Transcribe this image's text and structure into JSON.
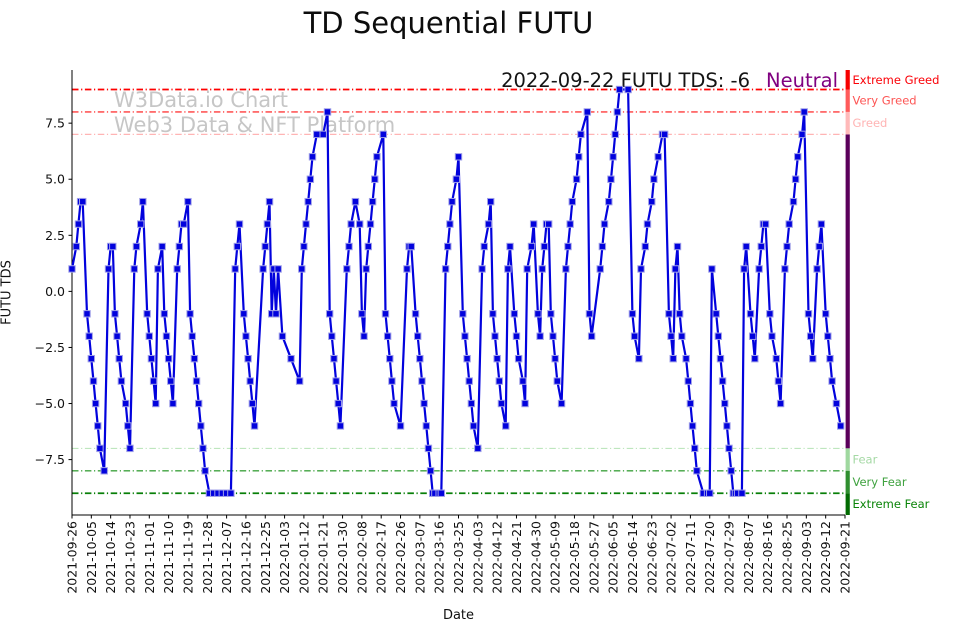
{
  "title": "TD Sequential FUTU",
  "watermark": {
    "line1": "W3Data.io Chart",
    "line2": "Web3 Data & NFT Platform",
    "color": "#c6c6c6"
  },
  "annotation": {
    "text": "2022-09-22 FUTU TDS: -6",
    "status": "Neutral",
    "status_color": "#800080"
  },
  "axes": {
    "xlabel": "Date",
    "ylabel": "FUTU TDS",
    "ytick_values": [
      7.5,
      5.0,
      2.5,
      0.0,
      -2.5,
      -5.0,
      -7.5
    ],
    "ytick_labels": [
      "7.5",
      "5.0",
      "2.5",
      "0.0",
      "−2.5",
      "−5.0",
      "−7.5"
    ],
    "xtick_labels": [
      "2021-09-26",
      "2021-10-05",
      "2021-10-14",
      "2021-10-23",
      "2021-11-01",
      "2021-11-10",
      "2021-11-19",
      "2021-11-28",
      "2021-12-07",
      "2021-12-16",
      "2021-12-25",
      "2022-01-03",
      "2022-01-12",
      "2022-01-21",
      "2022-01-30",
      "2022-02-08",
      "2022-02-17",
      "2022-02-26",
      "2022-03-07",
      "2022-03-16",
      "2022-03-25",
      "2022-04-03",
      "2022-04-12",
      "2022-04-21",
      "2022-04-30",
      "2022-05-09",
      "2022-05-18",
      "2022-05-27",
      "2022-06-05",
      "2022-06-14",
      "2022-06-23",
      "2022-07-02",
      "2022-07-11",
      "2022-07-20",
      "2022-07-29",
      "2022-08-07",
      "2022-08-16",
      "2022-08-25",
      "2022-09-03",
      "2022-09-12",
      "2022-09-21"
    ],
    "xtick_day_step": 9
  },
  "levels": [
    {
      "label": "Extreme Greed",
      "line_value": 9,
      "band": [
        9,
        9.87
      ],
      "line_color": "#fe0000",
      "label_color": "#fb0007",
      "bar_color": "#f70000",
      "line_width": 1.7
    },
    {
      "label": "Very Greed",
      "line_value": 8,
      "band": [
        8,
        9
      ],
      "line_color": "#ff3b3b",
      "label_color": "#fd5554",
      "bar_color": "#ff5a5a",
      "line_width": 1.3
    },
    {
      "label": "Greed",
      "line_value": 7,
      "band": [
        7,
        8
      ],
      "line_color": "#ffb4b4",
      "label_color": "#ffb4b4",
      "bar_color": "#ffb9b9",
      "line_width": 1.2
    },
    {
      "label": "Fear",
      "line_value": -7,
      "band": [
        -8,
        -7
      ],
      "line_color": "#b5e3b5",
      "label_color": "#a5d9a5",
      "bar_color": "#9fd89f",
      "line_width": 1.1
    },
    {
      "label": "Very Fear",
      "line_value": -8,
      "band": [
        -9,
        -8
      ],
      "line_color": "#3fa23f",
      "label_color": "#3fa23f",
      "bar_color": "#2f8f2f",
      "line_width": 1.3
    },
    {
      "label": "Extreme Fear",
      "line_value": -9,
      "band": [
        -9.97,
        -9
      ],
      "line_color": "#087f08",
      "label_color": "#0a8408",
      "bar_color": "#026b02",
      "line_width": 1.7
    }
  ],
  "neutral_band": {
    "band": [
      -7,
      7
    ],
    "bar_color": "#5b005b"
  },
  "series_style": {
    "line_color": "#0202dd",
    "marker_color": "#0202dd",
    "marker_edge": "#9f9fe8"
  },
  "chart_data": {
    "type": "line",
    "series_name": "FUTU TDS",
    "title": "TD Sequential FUTU",
    "xlabel": "Date",
    "ylabel": "FUTU TDS",
    "x_unit": "days since 2021-09-26",
    "x_start_date": "2021-09-26",
    "x_range": [
      0,
      360
    ],
    "ylim": [
      -9.97,
      9.87
    ],
    "grid": false,
    "legend": "none",
    "points": [
      [
        0,
        1
      ],
      [
        2,
        2
      ],
      [
        3,
        3
      ],
      [
        4,
        4
      ],
      [
        5,
        4
      ],
      [
        7,
        -1
      ],
      [
        8,
        -2
      ],
      [
        9,
        -3
      ],
      [
        10,
        -4
      ],
      [
        11,
        -5
      ],
      [
        12,
        -6
      ],
      [
        13,
        -7
      ],
      [
        15,
        -8
      ],
      [
        17,
        1
      ],
      [
        18,
        2
      ],
      [
        19,
        2
      ],
      [
        20,
        -1
      ],
      [
        21,
        -2
      ],
      [
        22,
        -3
      ],
      [
        23,
        -4
      ],
      [
        25,
        -5
      ],
      [
        26,
        -6
      ],
      [
        27,
        -7
      ],
      [
        29,
        1
      ],
      [
        30,
        2
      ],
      [
        32,
        3
      ],
      [
        33,
        4
      ],
      [
        35,
        -1
      ],
      [
        36,
        -2
      ],
      [
        37,
        -3
      ],
      [
        38,
        -4
      ],
      [
        39,
        -5
      ],
      [
        40,
        1
      ],
      [
        42,
        2
      ],
      [
        43,
        -1
      ],
      [
        44,
        -2
      ],
      [
        45,
        -3
      ],
      [
        46,
        -4
      ],
      [
        47,
        -5
      ],
      [
        49,
        1
      ],
      [
        50,
        2
      ],
      [
        51,
        3
      ],
      [
        52,
        3
      ],
      [
        54,
        4
      ],
      [
        55,
        -1
      ],
      [
        56,
        -2
      ],
      [
        57,
        -3
      ],
      [
        58,
        -4
      ],
      [
        59,
        -5
      ],
      [
        60,
        -6
      ],
      [
        61,
        -7
      ],
      [
        62,
        -8
      ],
      [
        64,
        -9
      ],
      [
        66,
        -9
      ],
      [
        68,
        -9
      ],
      [
        70,
        -9
      ],
      [
        72,
        -9
      ],
      [
        74,
        -9
      ],
      [
        76,
        1
      ],
      [
        77,
        2
      ],
      [
        78,
        3
      ],
      [
        80,
        -1
      ],
      [
        81,
        -2
      ],
      [
        82,
        -3
      ],
      [
        83,
        -4
      ],
      [
        84,
        -5
      ],
      [
        85,
        -6
      ],
      [
        89,
        1
      ],
      [
        90,
        2
      ],
      [
        91,
        3
      ],
      [
        92,
        4
      ],
      [
        93,
        -1
      ],
      [
        94,
        1
      ],
      [
        95,
        -1
      ],
      [
        96,
        1
      ],
      [
        98,
        -2
      ],
      [
        102,
        -3
      ],
      [
        106,
        -4
      ],
      [
        107,
        1
      ],
      [
        108,
        2
      ],
      [
        109,
        3
      ],
      [
        110,
        4
      ],
      [
        111,
        5
      ],
      [
        112,
        6
      ],
      [
        114,
        7
      ],
      [
        117,
        7
      ],
      [
        119,
        8
      ],
      [
        120,
        -1
      ],
      [
        121,
        -2
      ],
      [
        122,
        -3
      ],
      [
        123,
        -4
      ],
      [
        124,
        -5
      ],
      [
        125,
        -6
      ],
      [
        128,
        1
      ],
      [
        129,
        2
      ],
      [
        130,
        3
      ],
      [
        132,
        4
      ],
      [
        134,
        3
      ],
      [
        135,
        -1
      ],
      [
        136,
        -2
      ],
      [
        137,
        1
      ],
      [
        138,
        2
      ],
      [
        139,
        3
      ],
      [
        140,
        4
      ],
      [
        141,
        5
      ],
      [
        142,
        6
      ],
      [
        145,
        7
      ],
      [
        146,
        -1
      ],
      [
        147,
        -2
      ],
      [
        148,
        -3
      ],
      [
        149,
        -4
      ],
      [
        150,
        -5
      ],
      [
        153,
        -6
      ],
      [
        156,
        1
      ],
      [
        157,
        2
      ],
      [
        158,
        2
      ],
      [
        160,
        -1
      ],
      [
        161,
        -2
      ],
      [
        162,
        -3
      ],
      [
        163,
        -4
      ],
      [
        164,
        -5
      ],
      [
        165,
        -6
      ],
      [
        166,
        -7
      ],
      [
        167,
        -8
      ],
      [
        168,
        -9
      ],
      [
        169,
        -9
      ],
      [
        171,
        -9
      ],
      [
        172,
        -9
      ],
      [
        174,
        1
      ],
      [
        175,
        2
      ],
      [
        176,
        3
      ],
      [
        177,
        4
      ],
      [
        179,
        5
      ],
      [
        180,
        6
      ],
      [
        182,
        -1
      ],
      [
        183,
        -2
      ],
      [
        184,
        -3
      ],
      [
        185,
        -4
      ],
      [
        186,
        -5
      ],
      [
        187,
        -6
      ],
      [
        189,
        -7
      ],
      [
        191,
        1
      ],
      [
        192,
        2
      ],
      [
        194,
        3
      ],
      [
        195,
        4
      ],
      [
        196,
        -1
      ],
      [
        197,
        -2
      ],
      [
        198,
        -3
      ],
      [
        199,
        -4
      ],
      [
        200,
        -5
      ],
      [
        202,
        -6
      ],
      [
        203,
        1
      ],
      [
        204,
        2
      ],
      [
        206,
        -1
      ],
      [
        207,
        -2
      ],
      [
        208,
        -3
      ],
      [
        210,
        -4
      ],
      [
        211,
        -5
      ],
      [
        212,
        1
      ],
      [
        214,
        2
      ],
      [
        215,
        3
      ],
      [
        217,
        -1
      ],
      [
        218,
        -2
      ],
      [
        219,
        1
      ],
      [
        220,
        2
      ],
      [
        221,
        3
      ],
      [
        222,
        3
      ],
      [
        223,
        -1
      ],
      [
        224,
        -2
      ],
      [
        225,
        -3
      ],
      [
        226,
        -4
      ],
      [
        228,
        -5
      ],
      [
        230,
        1
      ],
      [
        231,
        2
      ],
      [
        232,
        3
      ],
      [
        233,
        4
      ],
      [
        235,
        5
      ],
      [
        236,
        6
      ],
      [
        237,
        7
      ],
      [
        240,
        8
      ],
      [
        241,
        -1
      ],
      [
        242,
        -2
      ],
      [
        246,
        1
      ],
      [
        247,
        2
      ],
      [
        248,
        3
      ],
      [
        250,
        4
      ],
      [
        251,
        5
      ],
      [
        252,
        6
      ],
      [
        253,
        7
      ],
      [
        254,
        8
      ],
      [
        255,
        9
      ],
      [
        259,
        9
      ],
      [
        261,
        -1
      ],
      [
        262,
        -2
      ],
      [
        264,
        -3
      ],
      [
        265,
        1
      ],
      [
        267,
        2
      ],
      [
        268,
        3
      ],
      [
        270,
        4
      ],
      [
        271,
        5
      ],
      [
        273,
        6
      ],
      [
        275,
        7
      ],
      [
        276,
        7
      ],
      [
        278,
        -1
      ],
      [
        279,
        -2
      ],
      [
        280,
        -3
      ],
      [
        281,
        1
      ],
      [
        282,
        2
      ],
      [
        283,
        -1
      ],
      [
        284,
        -2
      ],
      [
        286,
        -3
      ],
      [
        287,
        -4
      ],
      [
        288,
        -5
      ],
      [
        289,
        -6
      ],
      [
        290,
        -7
      ],
      [
        291,
        -8
      ],
      [
        294,
        -9
      ],
      [
        296,
        -9
      ],
      [
        297,
        -9
      ],
      [
        298,
        1
      ],
      [
        300,
        -1
      ],
      [
        301,
        -2
      ],
      [
        302,
        -3
      ],
      [
        303,
        -4
      ],
      [
        304,
        -5
      ],
      [
        305,
        -6
      ],
      [
        306,
        -7
      ],
      [
        307,
        -8
      ],
      [
        308,
        -9
      ],
      [
        309,
        -9
      ],
      [
        310,
        -9
      ],
      [
        312,
        -9
      ],
      [
        313,
        1
      ],
      [
        314,
        2
      ],
      [
        316,
        -1
      ],
      [
        317,
        -2
      ],
      [
        318,
        -3
      ],
      [
        320,
        1
      ],
      [
        321,
        2
      ],
      [
        322,
        3
      ],
      [
        323,
        3
      ],
      [
        325,
        -1
      ],
      [
        326,
        -2
      ],
      [
        328,
        -3
      ],
      [
        329,
        -4
      ],
      [
        330,
        -5
      ],
      [
        332,
        1
      ],
      [
        333,
        2
      ],
      [
        334,
        3
      ],
      [
        336,
        4
      ],
      [
        337,
        5
      ],
      [
        338,
        6
      ],
      [
        340,
        7
      ],
      [
        341,
        8
      ],
      [
        343,
        -1
      ],
      [
        344,
        -2
      ],
      [
        345,
        -3
      ],
      [
        347,
        1
      ],
      [
        348,
        2
      ],
      [
        349,
        3
      ],
      [
        351,
        -1
      ],
      [
        352,
        -2
      ],
      [
        353,
        -3
      ],
      [
        354,
        -4
      ],
      [
        356,
        -5
      ],
      [
        358,
        -6
      ]
    ]
  }
}
